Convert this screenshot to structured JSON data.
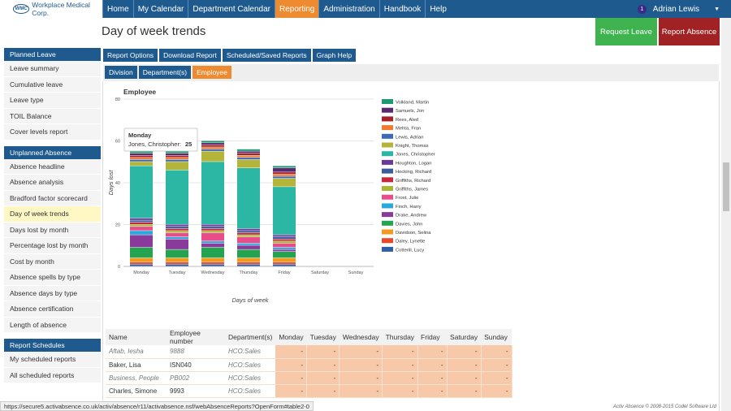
{
  "app": {
    "logo_mark": "WMC",
    "logo_text": "Workplace Medical Corp.",
    "nav": [
      "Home",
      "My Calendar",
      "Department Calendar",
      "Reporting",
      "Administration",
      "Handbook",
      "Help"
    ],
    "active_nav": "Reporting",
    "user_badge": "1",
    "user_name": "Adrian Lewis"
  },
  "header": {
    "title": "Day of week trends",
    "request_leave": "Request Leave",
    "report_absence": "Report Absence"
  },
  "sidebar": {
    "sections": [
      {
        "title": "Planned Leave",
        "items": [
          "Leave summary",
          "Cumulative leave",
          "Leave type",
          "TOIL Balance",
          "Cover levels report"
        ]
      },
      {
        "title": "Unplanned Absence",
        "items": [
          "Absence headline",
          "Absence analysis",
          "Bradford factor scorecard",
          "Day of week trends",
          "Days lost by month",
          "Percentage lost by month",
          "Cost by month",
          "Absence spells by type",
          "Absence days by type",
          "Absence certification",
          "Length of absence"
        ]
      },
      {
        "title": "Report Schedules",
        "items": [
          "My scheduled reports",
          "All scheduled reports"
        ]
      }
    ],
    "active_item": "Day of week trends"
  },
  "tabs": [
    "Report Options",
    "Download Report",
    "Scheduled/Saved Reports",
    "Graph Help"
  ],
  "subtabs": [
    "Division",
    "Department(s)",
    "Employee"
  ],
  "active_subtab": "Employee",
  "chart_data": {
    "type": "bar",
    "stacked": true,
    "title": "Employee",
    "xlabel": "Days of week",
    "ylabel": "Days lost",
    "ylim": [
      0,
      80
    ],
    "yticks": [
      0,
      20,
      40,
      60,
      80
    ],
    "categories": [
      "Monday",
      "Tuesday",
      "Wednesday",
      "Thursday",
      "Friday",
      "Saturday",
      "Sunday"
    ],
    "legend_position": "right",
    "series": [
      {
        "name": "Cotterill, Lucy",
        "color": "#2e5fa6",
        "values": [
          1,
          1,
          1,
          1,
          1,
          0,
          0
        ]
      },
      {
        "name": "Daley, Lynette",
        "color": "#e8492a",
        "values": [
          1,
          1,
          1,
          1,
          1,
          0,
          0
        ]
      },
      {
        "name": "Davidson, Selina",
        "color": "#f29a1f",
        "values": [
          2,
          2,
          2,
          2,
          2,
          0,
          0
        ]
      },
      {
        "name": "Davies, John",
        "color": "#24a350",
        "values": [
          5,
          4,
          5,
          4,
          3,
          0,
          0
        ]
      },
      {
        "name": "Drake, Andrew",
        "color": "#8a3a9a",
        "values": [
          6,
          5,
          2,
          2,
          1,
          0,
          0
        ]
      },
      {
        "name": "Finch, Harry",
        "color": "#29a8dc",
        "values": [
          2,
          1,
          1,
          1,
          1,
          0,
          0
        ]
      },
      {
        "name": "Frost, Julie",
        "color": "#e84c8a",
        "values": [
          2,
          2,
          4,
          3,
          2,
          0,
          0
        ]
      },
      {
        "name": "Griffiths, James",
        "color": "#a8b832",
        "values": [
          1,
          1,
          1,
          1,
          1,
          0,
          0
        ]
      },
      {
        "name": "Griffiths, Richard",
        "color": "#c4283a",
        "values": [
          1,
          1,
          1,
          1,
          1,
          0,
          0
        ]
      },
      {
        "name": "Hocking, Richard",
        "color": "#3b5d9c",
        "values": [
          1,
          1,
          1,
          1,
          1,
          0,
          0
        ]
      },
      {
        "name": "Houghton, Logan",
        "color": "#6a3a9a",
        "values": [
          1,
          1,
          1,
          1,
          1,
          0,
          0
        ]
      },
      {
        "name": "Jones, Christopher",
        "color": "#2cb6a4",
        "values": [
          25,
          26,
          30,
          29,
          23,
          0,
          0
        ]
      },
      {
        "name": "Knight, Thomas",
        "color": "#b4b43a",
        "values": [
          2,
          4,
          5,
          4,
          4,
          0,
          0
        ]
      },
      {
        "name": "Lewis, Adrian",
        "color": "#3a6ab8",
        "values": [
          1,
          1,
          1,
          1,
          1,
          0,
          0
        ]
      },
      {
        "name": "Mehta, Fran",
        "color": "#f07a30",
        "values": [
          1,
          1,
          1,
          1,
          1,
          0,
          0
        ]
      },
      {
        "name": "Rees, Aled",
        "color": "#a4202a",
        "values": [
          1,
          1,
          1,
          1,
          1,
          0,
          0
        ]
      },
      {
        "name": "Samuels, Jon",
        "color": "#5a2870",
        "values": [
          1,
          1,
          1,
          1,
          2,
          0,
          0
        ]
      },
      {
        "name": "Volkland, Martin",
        "color": "#1e9a6e",
        "values": [
          2,
          1,
          1,
          1,
          1,
          0,
          0
        ]
      }
    ],
    "tooltip": {
      "day": "Monday",
      "label": "Jones, Christopher:",
      "value": "25"
    }
  },
  "table": {
    "headers": [
      "Name",
      "Employee number",
      "Department(s)",
      "Monday",
      "Tuesday",
      "Wednesday",
      "Thursday",
      "Friday",
      "Saturday",
      "Sunday"
    ],
    "rows": [
      {
        "name": "Aftab, Iesha",
        "emp": "9888",
        "dept": "HCO:Sales",
        "days": [
          "-",
          "-",
          "-",
          "-",
          "-",
          "-",
          "-"
        ]
      },
      {
        "name": "Baker, Lisa",
        "emp": "ISN040",
        "dept": "HCO:Sales",
        "days": [
          "-",
          "-",
          "-",
          "-",
          "-",
          "-",
          "-"
        ]
      },
      {
        "name": "Business, People",
        "emp": "PB002",
        "dept": "HCO:Sales",
        "days": [
          "-",
          "-",
          "-",
          "-",
          "-",
          "-",
          "-"
        ]
      },
      {
        "name": "Charles, Simone",
        "emp": "9993",
        "dept": "HCO:Sales",
        "days": [
          "-",
          "-",
          "-",
          "-",
          "-",
          "-",
          "-"
        ]
      }
    ]
  },
  "status_url": "https://secure5.activabsence.co.uk/activ/absence/r11/activabsence.nsf/webAbsenceReports?OpenForm#table2-0",
  "footer": "Activ Absence © 2008-2015 Codel Software Ltd"
}
